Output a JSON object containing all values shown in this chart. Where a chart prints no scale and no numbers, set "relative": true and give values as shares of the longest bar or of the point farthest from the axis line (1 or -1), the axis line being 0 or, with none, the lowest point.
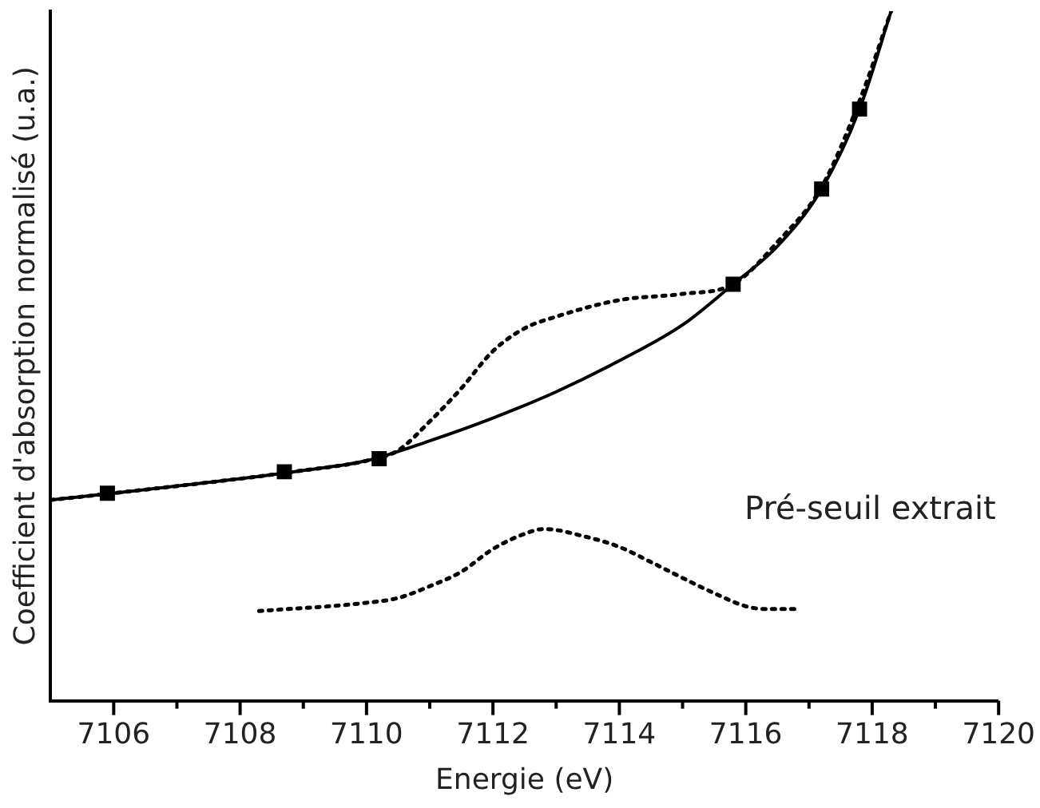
{
  "chart_data": {
    "type": "line",
    "xlabel": "Energie (eV)",
    "ylabel": "Coefficient d'absorption normalisé (u.a.)",
    "relative": true,
    "legend": false,
    "grid": false,
    "tick_labels": "x",
    "xlim": [
      7105,
      7120
    ],
    "xticks": [
      7106,
      {
        "value": 7107,
        "label": null
      },
      7108,
      {
        "value": 7109,
        "label": null
      },
      7110,
      {
        "value": 7111,
        "label": null
      },
      7112,
      {
        "value": 7113,
        "label": null
      },
      7114,
      {
        "value": 7115,
        "label": null
      },
      7116,
      {
        "value": 7117,
        "label": null
      },
      7118,
      {
        "value": 7119,
        "label": null
      },
      7120
    ],
    "annotations": [
      "Pré-seuil extrait"
    ],
    "series": [
      {
        "type": "line",
        "line_style": "dotted",
        "color": "#000000",
        "x": [
          7105,
          7106,
          7108,
          7109,
          7110,
          7110.5,
          7111,
          7111.5,
          7112,
          7112.5,
          7113,
          7114,
          7115,
          7115.8,
          7116.5,
          7117.2,
          7117.8,
          7118.3
        ],
        "values": [
          0.291,
          0.301,
          0.322,
          0.334,
          0.348,
          0.363,
          0.405,
          0.453,
          0.507,
          0.54,
          0.557,
          0.581,
          0.59,
          0.604,
          0.665,
          0.745,
          0.87,
          1.0
        ]
      },
      {
        "type": "line",
        "line_style": "solid",
        "color": "#000000",
        "x": [
          7105,
          7106,
          7108,
          7109,
          7110,
          7111,
          7112,
          7113,
          7114,
          7115,
          7115.8,
          7116.5,
          7117.2,
          7117.8,
          7118.3
        ],
        "values": [
          0.291,
          0.301,
          0.322,
          0.334,
          0.348,
          0.377,
          0.41,
          0.448,
          0.493,
          0.545,
          0.604,
          0.659,
          0.742,
          0.858,
          1.0
        ]
      },
      {
        "type": "scatter",
        "marker": "square",
        "color": "#000000",
        "x": [
          7105.9,
          7108.7,
          7110.2,
          7115.8,
          7117.2,
          7117.8
        ],
        "values": [
          0.301,
          0.332,
          0.351,
          0.604,
          0.742,
          0.858
        ]
      },
      {
        "type": "line",
        "line_style": "dotted",
        "color": "#000000",
        "x": [
          7108.3,
          7110,
          7110.5,
          7111,
          7111.5,
          7112,
          7112.5,
          7112.8,
          7113.5,
          7114,
          7114.5,
          7115,
          7115.5,
          7116,
          7116.3,
          7116.8
        ],
        "values": [
          0.13,
          0.142,
          0.149,
          0.166,
          0.187,
          0.22,
          0.242,
          0.249,
          0.237,
          0.223,
          0.201,
          0.178,
          0.156,
          0.137,
          0.133,
          0.133
        ]
      }
    ]
  }
}
